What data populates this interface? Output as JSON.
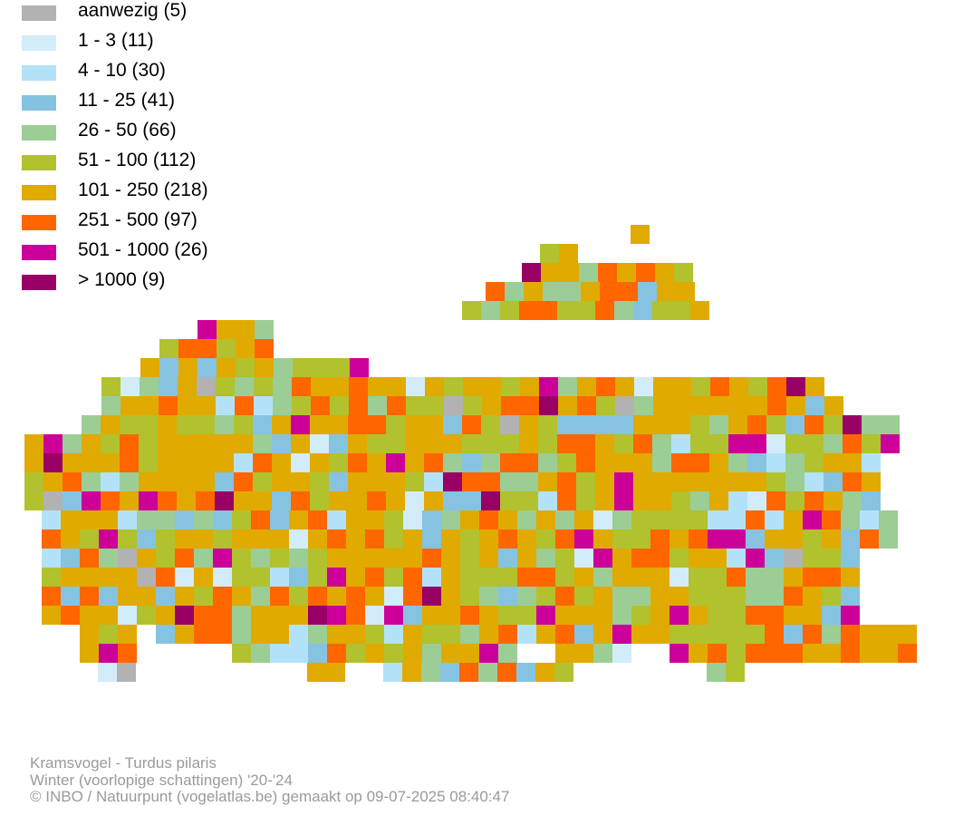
{
  "legend": {
    "items": [
      {
        "label": "aanwezig (5)",
        "color": "#b2b2b2"
      },
      {
        "label": "1 - 3 (11)",
        "color": "#d2ecfa"
      },
      {
        "label": "4 - 10 (30)",
        "color": "#b3e2f8"
      },
      {
        "label": "11 - 25 (41)",
        "color": "#86c3e0"
      },
      {
        "label": "26 - 50 (66)",
        "color": "#9bcd95"
      },
      {
        "label": "51 - 100 (112)",
        "color": "#b2c12e"
      },
      {
        "label": "101 - 250 (218)",
        "color": "#e0aa00"
      },
      {
        "label": "251 - 500 (97)",
        "color": "#ff6600"
      },
      {
        "label": "501 - 1000 (26)",
        "color": "#cc0099"
      },
      {
        "label": "> 1000 (9)",
        "color": "#990066"
      }
    ]
  },
  "caption": {
    "species": "Kramsvogel - Turdus pilaris",
    "period": "Winter (voorlopige schattingen) '20-'24",
    "credit": "© INBO / Natuurpunt (vogelatlas.be) gemaakt op 09-07-2025 08:40:47"
  },
  "map": {
    "outline_color": "#808080"
  }
}
